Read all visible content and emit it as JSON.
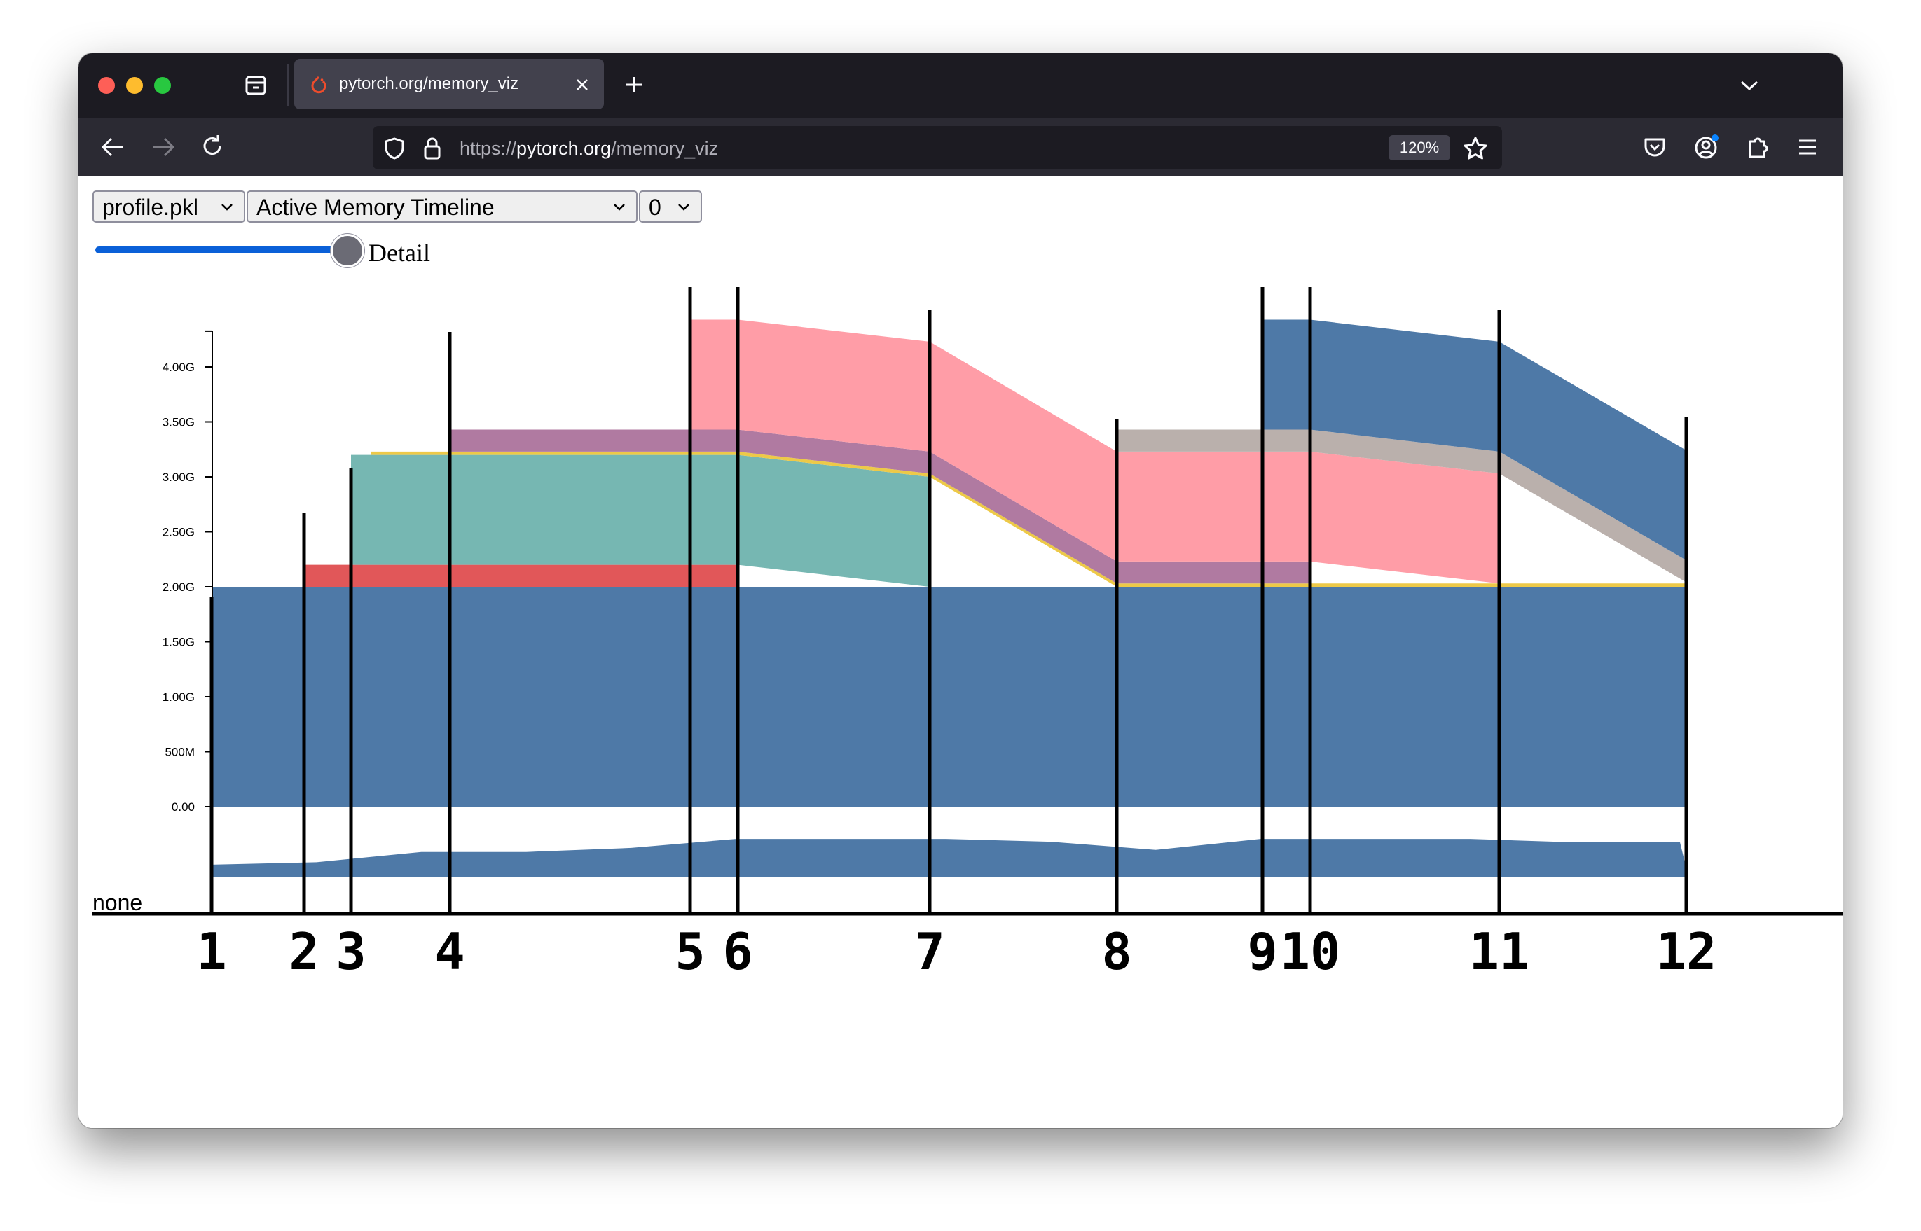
{
  "browser": {
    "tab_title": "pytorch.org/memory_viz",
    "url_scheme": "https://",
    "url_host": "pytorch.org",
    "url_path": "/memory_viz",
    "zoom": "120%",
    "icons": [
      "archive-icon",
      "pytorch-tab-icon",
      "close-tab-icon",
      "new-tab-icon",
      "tab-list-chevron-icon",
      "back-arrow-icon",
      "forward-arrow-icon",
      "reload-icon",
      "shield-icon",
      "lock-icon",
      "bookmark-star-icon",
      "pocket-icon",
      "account-icon",
      "extensions-icon",
      "menu-icon"
    ]
  },
  "controls": {
    "file_select": "profile.pkl",
    "view_select": "Active Memory Timeline",
    "device_select": "0",
    "slider_label": "Detail",
    "slider_value": 1
  },
  "chart_data": {
    "type": "area",
    "ylim": [
      0,
      4.3
    ],
    "yticks": [
      {
        "label": "4.00G",
        "value": 4.0
      },
      {
        "label": "3.50G",
        "value": 3.5
      },
      {
        "label": "3.00G",
        "value": 3.0
      },
      {
        "label": "2.50G",
        "value": 2.5
      },
      {
        "label": "2.00G",
        "value": 2.0
      },
      {
        "label": "1.50G",
        "value": 1.5
      },
      {
        "label": "1.00G",
        "value": 1.0
      },
      {
        "label": "500M",
        "value": 0.5
      },
      {
        "label": "0.00",
        "value": 0.0
      }
    ],
    "x_markers": [
      "1",
      "2",
      "3",
      "4",
      "5",
      "6",
      "7",
      "8",
      "9",
      "10",
      "11",
      "12"
    ],
    "x_marker_positions": [
      1,
      2,
      3,
      4,
      5,
      6,
      7,
      8,
      9,
      10,
      11,
      12
    ],
    "x_breakpoints": [
      1,
      2,
      3,
      3.2,
      4,
      5,
      6,
      7,
      8,
      9,
      10,
      11,
      12
    ],
    "series": [
      {
        "color": "#4e79a7",
        "points": [
          [
            1,
            0
          ],
          [
            1,
            2.0
          ],
          [
            12,
            2.0
          ],
          [
            12,
            0
          ]
        ]
      },
      {
        "color": "#e15759",
        "points": [
          [
            2,
            2.0
          ],
          [
            2,
            2.2
          ],
          [
            6,
            2.2
          ],
          [
            6,
            2.0
          ]
        ]
      },
      {
        "color": "#76b7b2",
        "points": [
          [
            3,
            2.2
          ],
          [
            3,
            3.2
          ],
          [
            6,
            3.2
          ],
          [
            7,
            3.0
          ],
          [
            7,
            2.0
          ],
          [
            6,
            2.2
          ]
        ]
      },
      {
        "color": "#edc948",
        "points": [
          [
            3.2,
            3.2
          ],
          [
            3.2,
            3.23
          ],
          [
            6,
            3.23
          ],
          [
            7,
            3.03
          ],
          [
            8,
            2.03
          ],
          [
            12,
            2.03
          ],
          [
            12,
            2.0
          ],
          [
            8,
            2.0
          ],
          [
            7,
            3.0
          ],
          [
            6,
            3.2
          ]
        ]
      },
      {
        "color": "#b07aa1",
        "points": [
          [
            4,
            3.23
          ],
          [
            4,
            3.43
          ],
          [
            6,
            3.43
          ],
          [
            7,
            3.23
          ],
          [
            8,
            2.23
          ],
          [
            10,
            2.23
          ],
          [
            10,
            2.03
          ],
          [
            8,
            2.03
          ],
          [
            7,
            3.03
          ],
          [
            6,
            3.23
          ]
        ]
      },
      {
        "color": "#ff9da7",
        "points": [
          [
            5,
            3.43
          ],
          [
            5,
            4.43
          ],
          [
            6,
            4.43
          ],
          [
            7,
            4.23
          ],
          [
            8,
            3.23
          ],
          [
            10,
            3.23
          ],
          [
            11,
            3.03
          ],
          [
            11,
            2.03
          ],
          [
            10,
            2.23
          ],
          [
            8,
            2.23
          ],
          [
            7,
            3.23
          ],
          [
            6,
            3.43
          ]
        ]
      },
      {
        "color": "#bab0ac",
        "points": [
          [
            8,
            3.23
          ],
          [
            8,
            3.43
          ],
          [
            10,
            3.43
          ],
          [
            11,
            3.23
          ],
          [
            12,
            2.23
          ],
          [
            12,
            2.03
          ],
          [
            11,
            3.03
          ],
          [
            10,
            3.23
          ]
        ]
      },
      {
        "color": "#4e79a7",
        "points": [
          [
            9,
            3.43
          ],
          [
            9,
            4.43
          ],
          [
            10,
            4.43
          ],
          [
            11,
            4.23
          ],
          [
            12,
            3.23
          ],
          [
            12,
            2.23
          ],
          [
            11,
            3.23
          ],
          [
            10,
            3.43
          ]
        ]
      }
    ],
    "strip": {
      "label": "none",
      "color": "#4e79a7",
      "heights": [
        0.35,
        0.42,
        0.72,
        0.72,
        0.84,
        1.1,
        1.1,
        1.1,
        1.02,
        0.78,
        1.1,
        1.1,
        1.1,
        1.0,
        1.0
      ]
    }
  }
}
